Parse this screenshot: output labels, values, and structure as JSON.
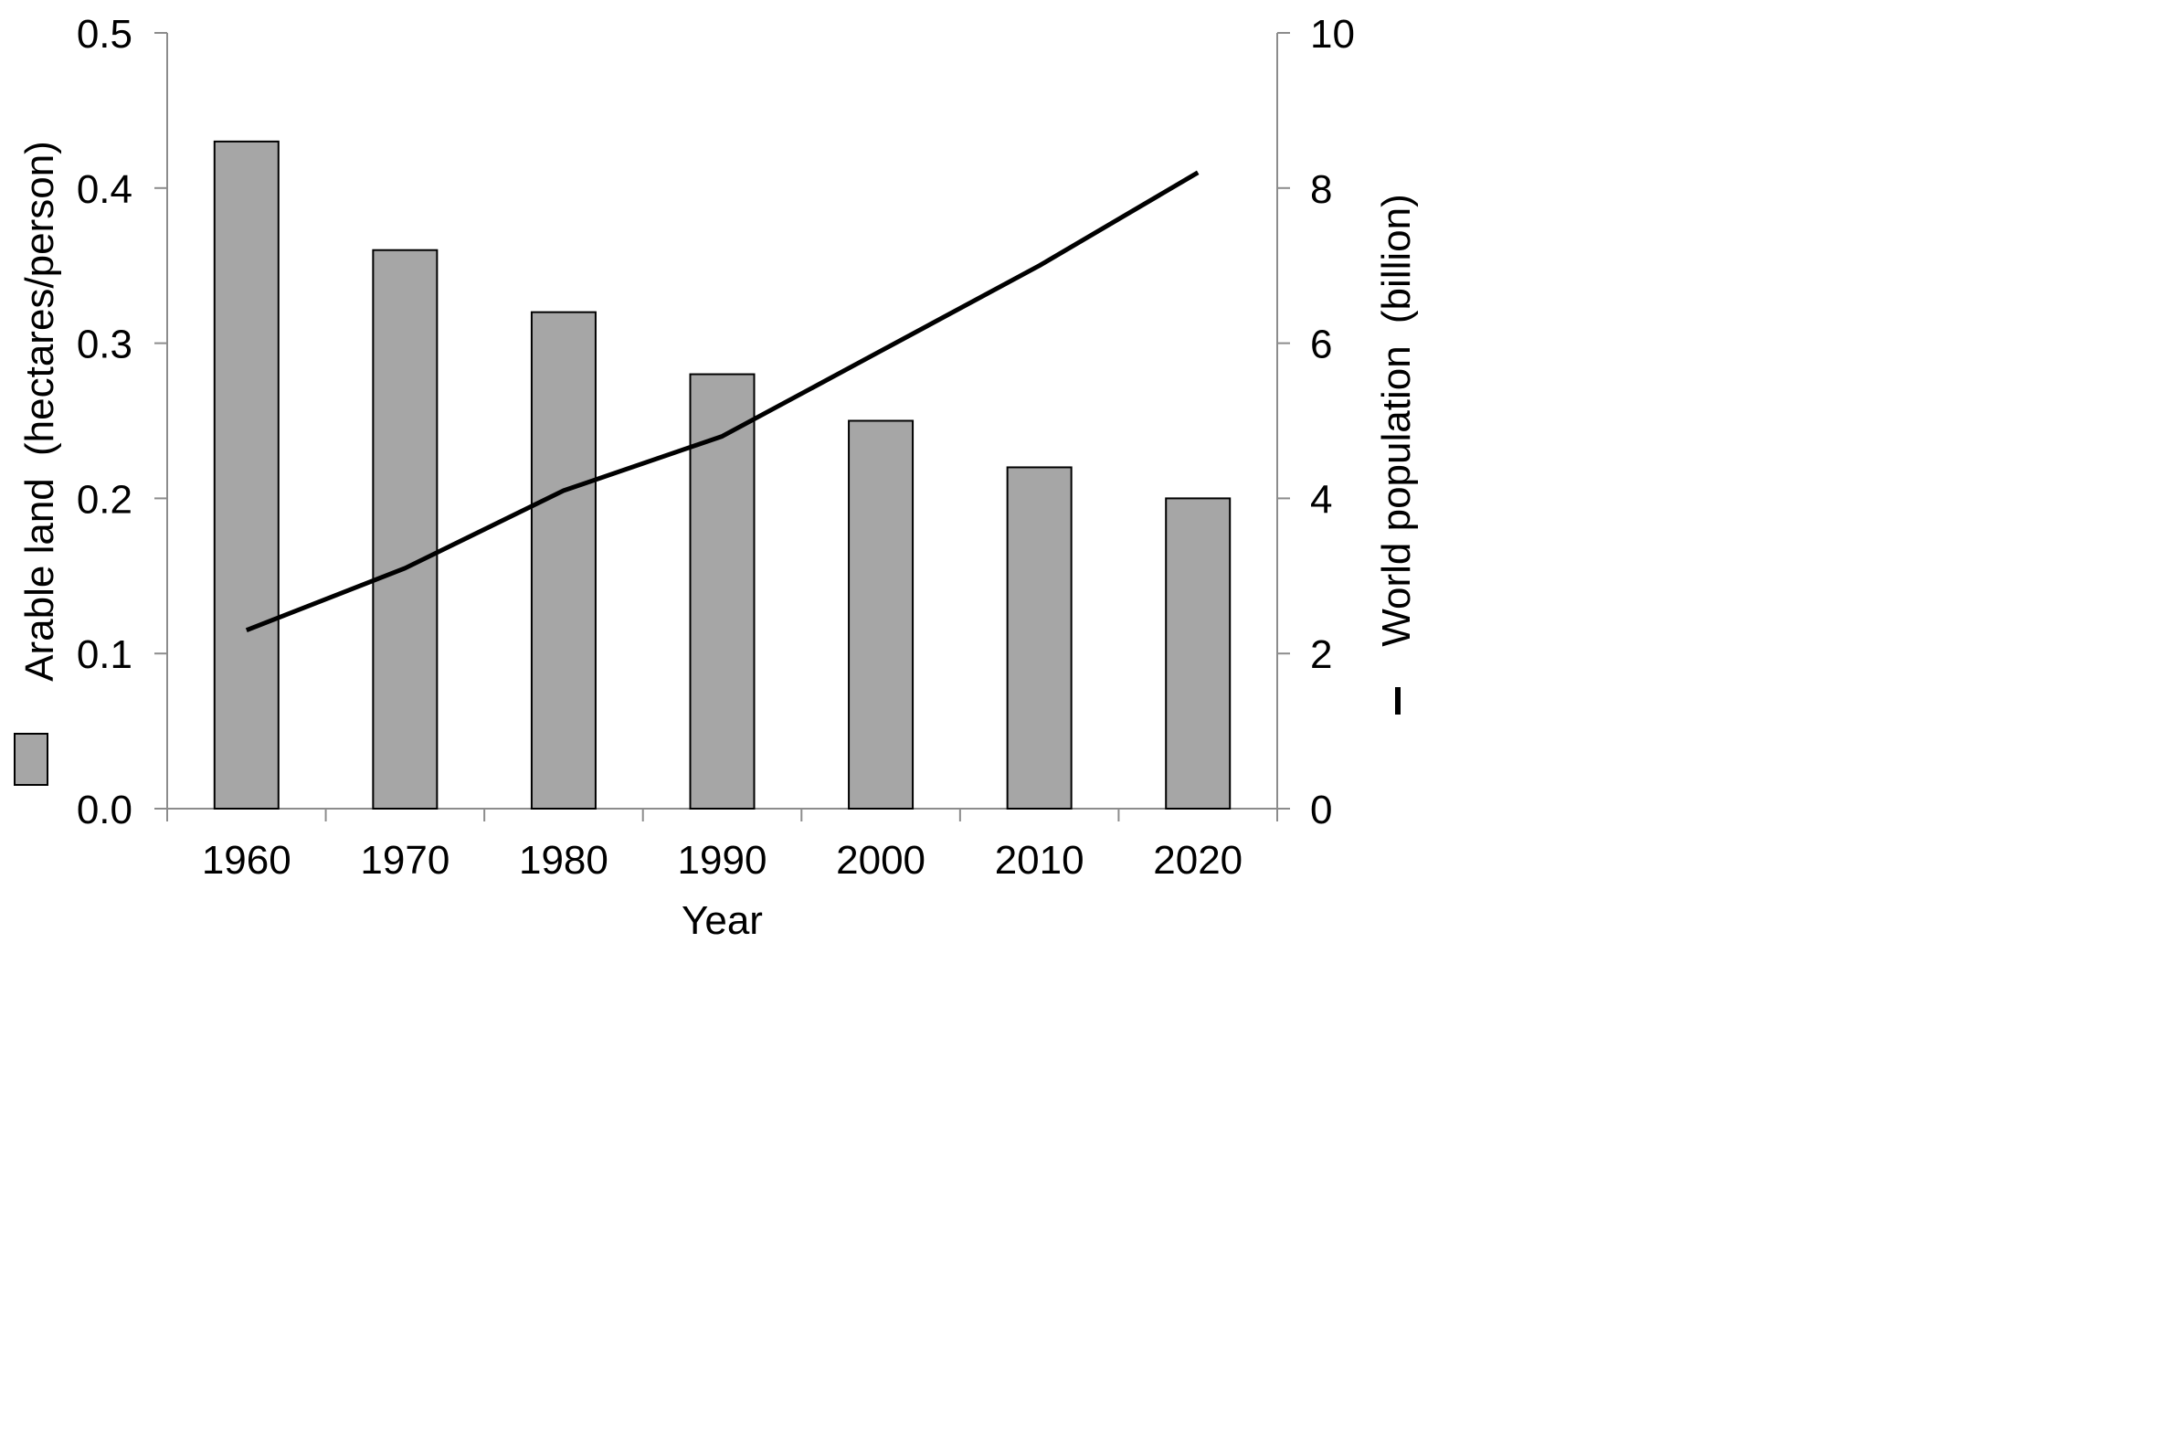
{
  "chart_data": {
    "type": "bar",
    "categories": [
      "1960",
      "1970",
      "1980",
      "1990",
      "2000",
      "2010",
      "2020"
    ],
    "series": [
      {
        "name": "Arable land",
        "type": "bar",
        "axis": "left",
        "values": [
          0.43,
          0.36,
          0.32,
          0.28,
          0.25,
          0.22,
          0.2
        ],
        "color": "#a6a6a6"
      },
      {
        "name": "World population",
        "type": "line",
        "axis": "right",
        "values": [
          2.3,
          3.1,
          4.1,
          4.8,
          5.9,
          7.0,
          8.2
        ],
        "color": "#000000"
      }
    ],
    "xlabel": "Year",
    "ylabel_left_legend": "Arable land",
    "ylabel_left": "(hectares/person)",
    "ylabel_right_legend": "World population",
    "ylabel_right": "(billion)",
    "ylim_left": [
      0,
      0.5
    ],
    "ylim_right": [
      0,
      10
    ],
    "yticks_left": [
      "0.0",
      "0.1",
      "0.2",
      "0.3",
      "0.4",
      "0.5"
    ],
    "yticks_right": [
      "0",
      "2",
      "4",
      "6",
      "8",
      "10"
    ],
    "grid": false,
    "legend": "inline with axis titles"
  }
}
